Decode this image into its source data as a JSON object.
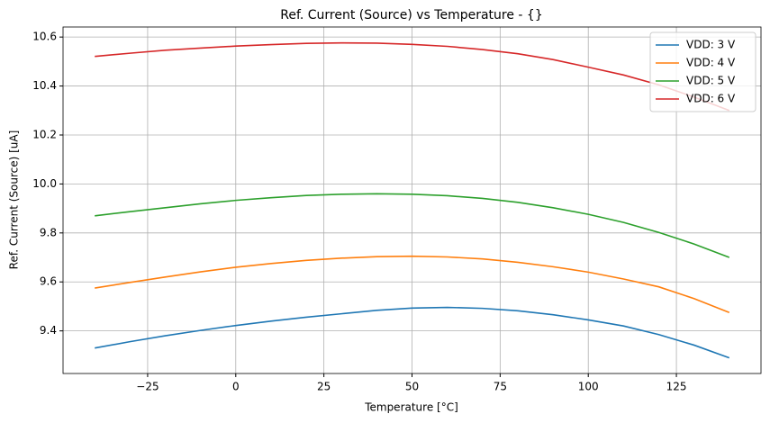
{
  "chart_data": {
    "type": "line",
    "title": "Ref. Current (Source) vs Temperature - {}",
    "x_label": "Temperature [°C]",
    "y_label": "Ref. Current (Source) [uA]",
    "x": [
      -40,
      -30,
      -20,
      -10,
      0,
      10,
      20,
      30,
      40,
      50,
      60,
      70,
      80,
      90,
      100,
      110,
      120,
      130,
      140
    ],
    "series": [
      {
        "name": "VDD: 3 V",
        "color": "#1f77b4",
        "values": [
          9.33,
          9.356,
          9.38,
          9.402,
          9.422,
          9.44,
          9.456,
          9.47,
          9.484,
          9.493,
          9.496,
          9.492,
          9.482,
          9.466,
          9.445,
          9.42,
          9.385,
          9.342,
          9.29
        ]
      },
      {
        "name": "VDD: 4 V",
        "color": "#ff7f0e",
        "values": [
          9.575,
          9.598,
          9.62,
          9.641,
          9.66,
          9.675,
          9.688,
          9.697,
          9.703,
          9.705,
          9.702,
          9.694,
          9.68,
          9.662,
          9.64,
          9.612,
          9.58,
          9.532,
          9.475
        ]
      },
      {
        "name": "VDD: 5 V",
        "color": "#2ca02c",
        "values": [
          9.87,
          9.887,
          9.903,
          9.919,
          9.933,
          9.944,
          9.953,
          9.958,
          9.96,
          9.958,
          9.952,
          9.941,
          9.925,
          9.903,
          9.876,
          9.843,
          9.802,
          9.755,
          9.7
        ]
      },
      {
        "name": "VDD: 6 V",
        "color": "#d62728",
        "values": [
          10.521,
          10.534,
          10.546,
          10.555,
          10.563,
          10.569,
          10.574,
          10.576,
          10.575,
          10.57,
          10.562,
          10.549,
          10.532,
          10.508,
          10.477,
          10.445,
          10.405,
          10.355,
          10.3
        ]
      }
    ],
    "xlim": [
      -49,
      149
    ],
    "ylim": [
      9.226,
      10.641
    ],
    "xticks": [
      {
        "value": -25,
        "label": "−25"
      },
      0,
      25,
      50,
      75,
      100,
      125
    ],
    "yticks": [
      9.4,
      9.6,
      9.8,
      {
        "value": 10,
        "label": "10.0"
      },
      10.2,
      10.4,
      10.6
    ],
    "grid": true,
    "legend": "upper right"
  }
}
